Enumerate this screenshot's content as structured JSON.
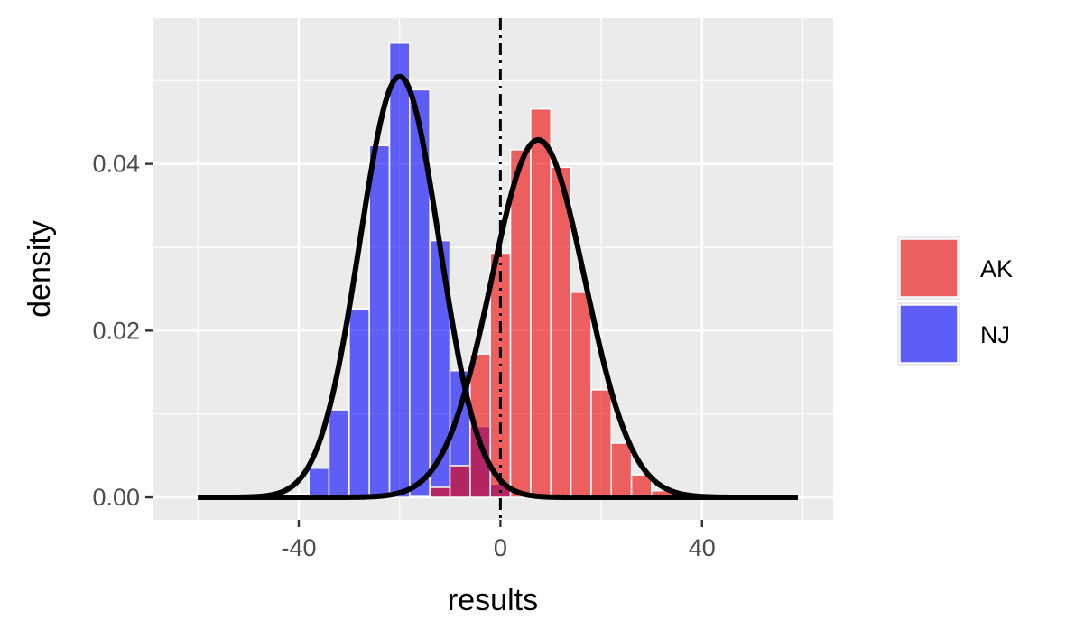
{
  "chart_data": {
    "type": "histogram",
    "xlabel": "results",
    "ylabel": "density",
    "xlim": [
      -69,
      66
    ],
    "ylim": [
      -0.0027,
      0.0575
    ],
    "x_ticks": [
      -40,
      0,
      40
    ],
    "x_tick_labels": [
      "-40",
      "0",
      "40"
    ],
    "y_ticks": [
      0,
      0.02,
      0.04
    ],
    "y_tick_labels": [
      "0.00",
      "0.02",
      "0.04"
    ],
    "grid": true,
    "legend_position": "right",
    "bin_width": 4,
    "series": [
      {
        "name": "NJ",
        "color": "#0000ff",
        "opacity": 0.6,
        "bin_centers": [
          -40,
          -36,
          -32,
          -28,
          -24,
          -20,
          -16,
          -12,
          -8,
          -4,
          0
        ],
        "density": [
          0.0004,
          0.0035,
          0.0105,
          0.0226,
          0.0422,
          0.0545,
          0.0489,
          0.0308,
          0.0152,
          0.0085,
          0.0016
        ]
      },
      {
        "name": "AK",
        "color": "#ee0000",
        "opacity": 0.6,
        "bin_centers": [
          -16,
          -12,
          -8,
          -4,
          0,
          4,
          8,
          12,
          16,
          20,
          24,
          28,
          32,
          36
        ],
        "density": [
          0.0001,
          0.0012,
          0.0038,
          0.0172,
          0.0293,
          0.0417,
          0.0466,
          0.0396,
          0.0246,
          0.0129,
          0.0065,
          0.0027,
          0.0008,
          0.0002
        ]
      }
    ],
    "curves": [
      {
        "color": "#000000",
        "mean": -20,
        "sd": 7.9,
        "x_range": [
          -60,
          59
        ]
      },
      {
        "color": "#000000",
        "mean": 7.5,
        "sd": 9.3,
        "x_range": [
          -60,
          59
        ]
      }
    ],
    "reference_line": {
      "x": 0,
      "style": "dashed",
      "color": "#000000"
    },
    "legend": [
      {
        "label": "AK",
        "color": "#ee0000"
      },
      {
        "label": "NJ",
        "color": "#0000ff"
      }
    ]
  }
}
